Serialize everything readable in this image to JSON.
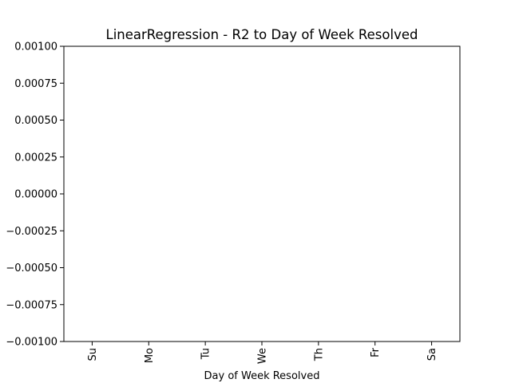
{
  "chart_data": {
    "type": "bar",
    "title": "LinearRegression - R2 to Day of Week Resolved",
    "xlabel": "Day of Week Resolved",
    "ylabel": "",
    "categories": [
      "Su",
      "Mo",
      "Tu",
      "We",
      "Th",
      "Fr",
      "Sa"
    ],
    "values": [
      0,
      0,
      0,
      0,
      0,
      0,
      0
    ],
    "ylim": [
      -0.001,
      0.001
    ],
    "yticks": [
      0.001,
      0.00075,
      0.0005,
      0.00025,
      0.0,
      -0.00025,
      -0.0005,
      -0.00075,
      -0.001
    ],
    "ytick_labels": [
      "0.00100",
      "0.00075",
      "0.00050",
      "0.00025",
      "0.00000",
      "−0.00025",
      "−0.00050",
      "−0.00075",
      "−0.00100"
    ],
    "grid": false,
    "colors": {
      "axis": "#000000",
      "bar": "#1f77b4",
      "background": "#ffffff"
    }
  }
}
